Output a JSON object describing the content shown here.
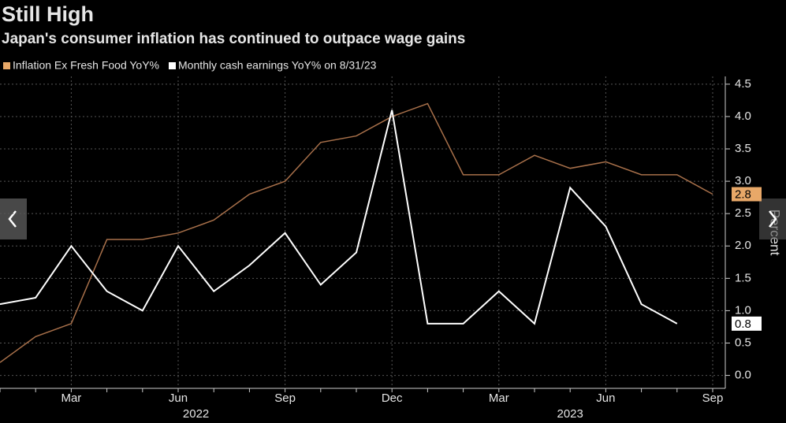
{
  "chart_data": {
    "type": "line",
    "title": "Still High",
    "subtitle": "Japan's consumer inflation has continued to outpace wage gains",
    "axis_label": "Percent",
    "categories": [
      null,
      null,
      "Mar",
      null,
      null,
      "Jun",
      null,
      null,
      "Sep",
      null,
      null,
      "Dec",
      null,
      null,
      "Mar",
      null,
      null,
      "Jun",
      null,
      null,
      "Sep"
    ],
    "years": [
      "2022",
      "2023"
    ],
    "series": [
      {
        "name": "Inflation Ex Fresh Food YoY%",
        "color": "#e8a868",
        "line_color": "#a8704a",
        "values": [
          0.2,
          0.6,
          0.8,
          2.1,
          2.1,
          2.2,
          2.4,
          2.8,
          3.0,
          3.6,
          3.7,
          4.0,
          4.2,
          3.1,
          3.1,
          3.4,
          3.2,
          3.3,
          3.1,
          3.1,
          2.8
        ]
      },
      {
        "name": "Monthly cash earnings YoY% on 8/31/23",
        "color": "#ffffff",
        "line_color": "#ffffff",
        "values": [
          1.1,
          1.2,
          2.0,
          1.3,
          1.0,
          2.0,
          1.3,
          1.7,
          2.2,
          1.4,
          1.9,
          4.1,
          0.8,
          0.8,
          1.3,
          0.8,
          2.9,
          2.3,
          1.1,
          0.8,
          null
        ]
      }
    ],
    "ylim": [
      -0.2,
      4.62
    ],
    "yticks": [
      {
        "value": 0,
        "label": "0.0"
      },
      0.5,
      {
        "value": 1,
        "label": "1.0"
      },
      1.5,
      {
        "value": 2,
        "label": "2.0"
      },
      2.5,
      {
        "value": 3,
        "label": "3.0"
      },
      3.5,
      {
        "value": 4,
        "label": "4.0"
      },
      4.5
    ],
    "grid": true
  }
}
